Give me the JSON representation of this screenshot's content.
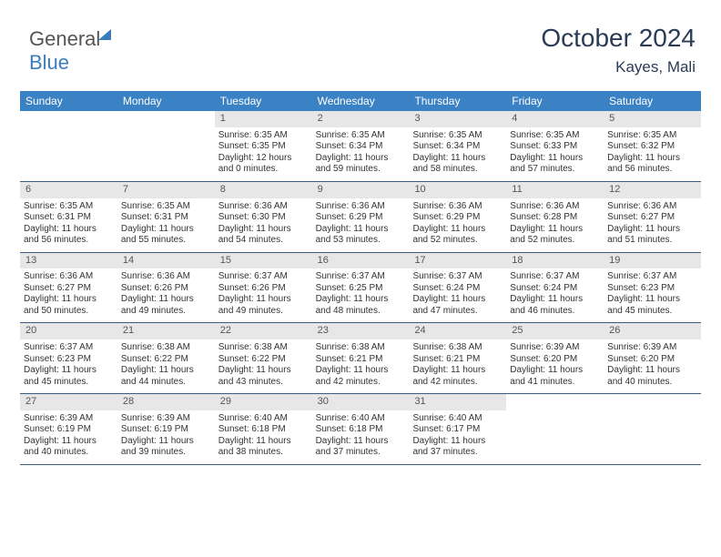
{
  "logo": {
    "part1": "General",
    "part2": "Blue"
  },
  "title": "October 2024",
  "location": "Kayes, Mali",
  "colors": {
    "header_bg": "#3b82c4",
    "header_text": "#ffffff",
    "daynum_bg": "#e7e7e7",
    "border": "#3b5a80",
    "title_color": "#2a3b55",
    "logo_blue": "#3b7cbf"
  },
  "day_headers": [
    "Sunday",
    "Monday",
    "Tuesday",
    "Wednesday",
    "Thursday",
    "Friday",
    "Saturday"
  ],
  "weeks": [
    [
      null,
      null,
      {
        "n": "1",
        "sr": "6:35 AM",
        "ss": "6:35 PM",
        "dl": "12 hours and 0 minutes."
      },
      {
        "n": "2",
        "sr": "6:35 AM",
        "ss": "6:34 PM",
        "dl": "11 hours and 59 minutes."
      },
      {
        "n": "3",
        "sr": "6:35 AM",
        "ss": "6:34 PM",
        "dl": "11 hours and 58 minutes."
      },
      {
        "n": "4",
        "sr": "6:35 AM",
        "ss": "6:33 PM",
        "dl": "11 hours and 57 minutes."
      },
      {
        "n": "5",
        "sr": "6:35 AM",
        "ss": "6:32 PM",
        "dl": "11 hours and 56 minutes."
      }
    ],
    [
      {
        "n": "6",
        "sr": "6:35 AM",
        "ss": "6:31 PM",
        "dl": "11 hours and 56 minutes."
      },
      {
        "n": "7",
        "sr": "6:35 AM",
        "ss": "6:31 PM",
        "dl": "11 hours and 55 minutes."
      },
      {
        "n": "8",
        "sr": "6:36 AM",
        "ss": "6:30 PM",
        "dl": "11 hours and 54 minutes."
      },
      {
        "n": "9",
        "sr": "6:36 AM",
        "ss": "6:29 PM",
        "dl": "11 hours and 53 minutes."
      },
      {
        "n": "10",
        "sr": "6:36 AM",
        "ss": "6:29 PM",
        "dl": "11 hours and 52 minutes."
      },
      {
        "n": "11",
        "sr": "6:36 AM",
        "ss": "6:28 PM",
        "dl": "11 hours and 52 minutes."
      },
      {
        "n": "12",
        "sr": "6:36 AM",
        "ss": "6:27 PM",
        "dl": "11 hours and 51 minutes."
      }
    ],
    [
      {
        "n": "13",
        "sr": "6:36 AM",
        "ss": "6:27 PM",
        "dl": "11 hours and 50 minutes."
      },
      {
        "n": "14",
        "sr": "6:36 AM",
        "ss": "6:26 PM",
        "dl": "11 hours and 49 minutes."
      },
      {
        "n": "15",
        "sr": "6:37 AM",
        "ss": "6:26 PM",
        "dl": "11 hours and 49 minutes."
      },
      {
        "n": "16",
        "sr": "6:37 AM",
        "ss": "6:25 PM",
        "dl": "11 hours and 48 minutes."
      },
      {
        "n": "17",
        "sr": "6:37 AM",
        "ss": "6:24 PM",
        "dl": "11 hours and 47 minutes."
      },
      {
        "n": "18",
        "sr": "6:37 AM",
        "ss": "6:24 PM",
        "dl": "11 hours and 46 minutes."
      },
      {
        "n": "19",
        "sr": "6:37 AM",
        "ss": "6:23 PM",
        "dl": "11 hours and 45 minutes."
      }
    ],
    [
      {
        "n": "20",
        "sr": "6:37 AM",
        "ss": "6:23 PM",
        "dl": "11 hours and 45 minutes."
      },
      {
        "n": "21",
        "sr": "6:38 AM",
        "ss": "6:22 PM",
        "dl": "11 hours and 44 minutes."
      },
      {
        "n": "22",
        "sr": "6:38 AM",
        "ss": "6:22 PM",
        "dl": "11 hours and 43 minutes."
      },
      {
        "n": "23",
        "sr": "6:38 AM",
        "ss": "6:21 PM",
        "dl": "11 hours and 42 minutes."
      },
      {
        "n": "24",
        "sr": "6:38 AM",
        "ss": "6:21 PM",
        "dl": "11 hours and 42 minutes."
      },
      {
        "n": "25",
        "sr": "6:39 AM",
        "ss": "6:20 PM",
        "dl": "11 hours and 41 minutes."
      },
      {
        "n": "26",
        "sr": "6:39 AM",
        "ss": "6:20 PM",
        "dl": "11 hours and 40 minutes."
      }
    ],
    [
      {
        "n": "27",
        "sr": "6:39 AM",
        "ss": "6:19 PM",
        "dl": "11 hours and 40 minutes."
      },
      {
        "n": "28",
        "sr": "6:39 AM",
        "ss": "6:19 PM",
        "dl": "11 hours and 39 minutes."
      },
      {
        "n": "29",
        "sr": "6:40 AM",
        "ss": "6:18 PM",
        "dl": "11 hours and 38 minutes."
      },
      {
        "n": "30",
        "sr": "6:40 AM",
        "ss": "6:18 PM",
        "dl": "11 hours and 37 minutes."
      },
      {
        "n": "31",
        "sr": "6:40 AM",
        "ss": "6:17 PM",
        "dl": "11 hours and 37 minutes."
      },
      null,
      null
    ]
  ],
  "labels": {
    "sunrise": "Sunrise:",
    "sunset": "Sunset:",
    "daylight": "Daylight:"
  }
}
